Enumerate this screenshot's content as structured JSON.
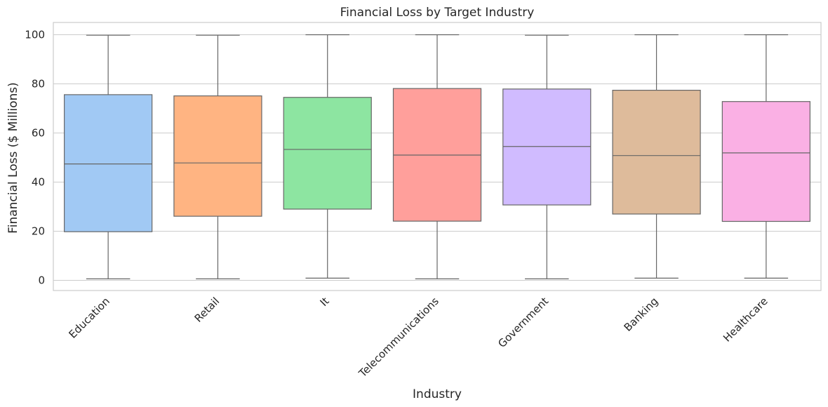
{
  "chart_data": {
    "type": "box",
    "title": "Financial Loss by Target Industry",
    "xlabel": "Industry",
    "ylabel": "Financial Loss ($ Millions)",
    "ylim": [
      -4,
      105
    ],
    "yticks": [
      0,
      20,
      40,
      60,
      80,
      100
    ],
    "grid": "y",
    "categories": [
      "Education",
      "Retail",
      "It",
      "Telecommunications",
      "Government",
      "Banking",
      "Healthcare"
    ],
    "boxes": [
      {
        "category": "Education",
        "whisker_low": 0.6,
        "q1": 19.8,
        "median": 47.4,
        "q3": 75.6,
        "whisker_high": 99.8,
        "color": "#a1c9f4"
      },
      {
        "category": "Retail",
        "whisker_low": 0.6,
        "q1": 26.1,
        "median": 47.8,
        "q3": 75.1,
        "whisker_high": 99.8,
        "color": "#ffb482"
      },
      {
        "category": "It",
        "whisker_low": 0.9,
        "q1": 29.0,
        "median": 53.3,
        "q3": 74.5,
        "whisker_high": 100.0,
        "color": "#8de5a1"
      },
      {
        "category": "Telecommunications",
        "whisker_low": 0.6,
        "q1": 24.1,
        "median": 51.0,
        "q3": 78.1,
        "whisker_high": 100.0,
        "color": "#ff9f9b"
      },
      {
        "category": "Government",
        "whisker_low": 0.6,
        "q1": 30.7,
        "median": 54.5,
        "q3": 77.9,
        "whisker_high": 99.8,
        "color": "#d0bbff"
      },
      {
        "category": "Banking",
        "whisker_low": 0.9,
        "q1": 27.0,
        "median": 50.8,
        "q3": 77.4,
        "whisker_high": 100.0,
        "color": "#debb9b"
      },
      {
        "category": "Healthcare",
        "whisker_low": 0.9,
        "q1": 24.0,
        "median": 51.9,
        "q3": 72.8,
        "whisker_high": 100.0,
        "color": "#fab0e4"
      }
    ]
  }
}
